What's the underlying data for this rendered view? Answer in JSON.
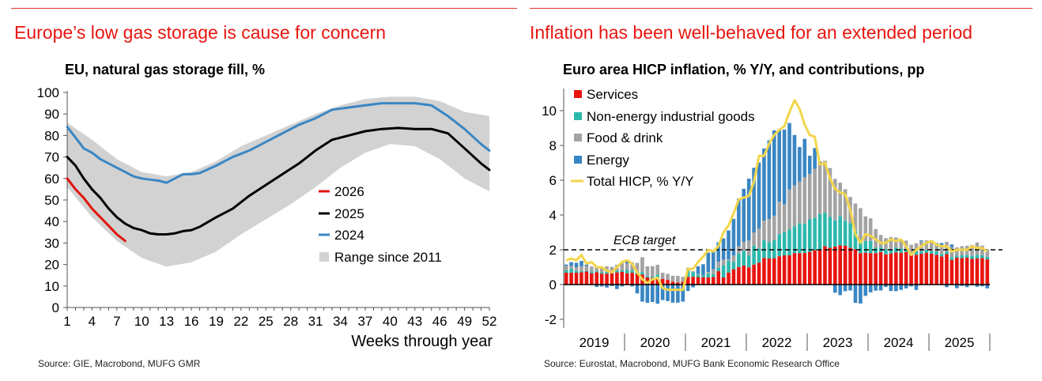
{
  "left": {
    "headline": "Europe’s low gas storage is cause for concern",
    "source": "Source: GIE, Macrobond, MUFG GMR"
  },
  "right": {
    "headline": "Inflation has been well-behaved for an extended period",
    "source": "Source: Eurostat, Macrobond, MUFG Bank Economic Research Office"
  },
  "colors": {
    "accent_red": "#e8150f",
    "line_2026": "#e0150f",
    "line_2025": "#000000",
    "line_2024": "#3a86c3",
    "range": "#d2d2d2",
    "services": "#e8150f",
    "neig": "#2db8ad",
    "food": "#a3a3a3",
    "energy": "#3a86c3",
    "total": "#f2d64b"
  },
  "chart_data": [
    {
      "type": "line",
      "title": "EU, natural gas storage fill, %",
      "xlabel": "Weeks through year",
      "ylabel": "",
      "xlim": [
        1,
        52
      ],
      "ylim": [
        0,
        100
      ],
      "x_ticks": [
        1,
        4,
        7,
        10,
        13,
        16,
        19,
        22,
        25,
        28,
        31,
        34,
        37,
        40,
        43,
        46,
        49,
        52
      ],
      "x_tick_labels": [
        "1",
        "4",
        "7",
        "10",
        "13",
        "16",
        "19",
        "22",
        "25",
        "28",
        "31",
        "34",
        "37",
        "40",
        "43",
        "46",
        "49",
        "52"
      ],
      "y_ticks": [
        0,
        10,
        20,
        30,
        40,
        50,
        60,
        70,
        80,
        90,
        100
      ],
      "y_tick_labels": [
        "0",
        "10",
        "20",
        "30",
        "40",
        "50",
        "60",
        "70",
        "80",
        "90",
        "100"
      ],
      "legend_position": "center-right",
      "band": {
        "name": "Range since 2011",
        "x": [
          1,
          4,
          7,
          10,
          13,
          16,
          19,
          22,
          25,
          28,
          31,
          34,
          37,
          40,
          43,
          46,
          49,
          52
        ],
        "upper": [
          86,
          78,
          69,
          63,
          61,
          63,
          68,
          75,
          80,
          85,
          90,
          94,
          97,
          98,
          98,
          96,
          91,
          89
        ],
        "lower": [
          56,
          42,
          31,
          23,
          19,
          21,
          26,
          34,
          41,
          48,
          56,
          65,
          72,
          76,
          75,
          69,
          60,
          54
        ]
      },
      "series": [
        {
          "name": "2026",
          "x": [
            1,
            2,
            3,
            4,
            5,
            6,
            7,
            8
          ],
          "values": [
            60,
            55,
            51,
            46,
            42,
            38,
            34,
            31
          ]
        },
        {
          "name": "2025",
          "x": [
            1,
            2,
            3,
            4,
            5,
            6,
            7,
            8,
            9,
            10,
            11,
            12,
            13,
            14,
            15,
            16,
            17,
            19,
            21,
            23,
            25,
            27,
            29,
            31,
            33,
            35,
            37,
            39,
            41,
            43,
            45,
            47,
            49,
            51,
            52
          ],
          "values": [
            70,
            66,
            60,
            55,
            51,
            46,
            42,
            39,
            37,
            36,
            34.5,
            34,
            34,
            34.5,
            35.5,
            36,
            37.5,
            42,
            46,
            52,
            57,
            62,
            67,
            73,
            78,
            80,
            82,
            83,
            83.5,
            83,
            83,
            81,
            74,
            67,
            64
          ]
        },
        {
          "name": "2024",
          "x": [
            1,
            2,
            3,
            4,
            5,
            6,
            7,
            8,
            9,
            10,
            11,
            12,
            13,
            14,
            15,
            16,
            17,
            19,
            21,
            23,
            25,
            27,
            29,
            31,
            33,
            35,
            37,
            39,
            41,
            43,
            45,
            47,
            49,
            51,
            52
          ],
          "values": [
            84,
            79,
            74,
            72,
            69,
            67,
            65,
            63,
            61,
            60,
            59.5,
            59,
            58,
            60,
            62,
            62,
            62.5,
            66,
            70,
            73,
            77,
            81,
            85,
            88,
            92,
            93,
            94,
            95,
            95,
            95,
            94,
            89,
            83,
            76,
            73
          ]
        }
      ]
    },
    {
      "type": "bar",
      "title": "Euro area HICP inflation, % Y/Y, and contributions, pp",
      "xlabel": "",
      "ylabel": "",
      "stacked": true,
      "ylim": [
        -2.5,
        11
      ],
      "y_ticks": [
        -2,
        0,
        2,
        4,
        6,
        8,
        10
      ],
      "y_tick_labels": [
        "-2",
        "0",
        "2",
        "4",
        "6",
        "8",
        "10"
      ],
      "x_tick_labels": [
        "2019",
        "2020",
        "2021",
        "2022",
        "2023",
        "2024",
        "2025"
      ],
      "months_per_year": 12,
      "start_year": 2019,
      "reference_line": {
        "value": 2,
        "label": "ECB target"
      },
      "legend_position": "top-left",
      "series": [
        {
          "name": "Services",
          "values": [
            0.68,
            0.68,
            0.68,
            0.71,
            0.75,
            0.65,
            0.71,
            0.63,
            0.63,
            0.65,
            0.7,
            0.73,
            0.65,
            0.68,
            0.61,
            0.58,
            0.41,
            0.39,
            0.34,
            0.32,
            0.27,
            0.17,
            0.12,
            0.16,
            0.44,
            0.45,
            0.43,
            0.41,
            0.42,
            0.44,
            0.77,
            0.41,
            0.69,
            0.88,
            1.01,
            1.09,
            0.99,
            1.15,
            1.26,
            1.53,
            1.5,
            1.52,
            1.63,
            1.68,
            1.68,
            1.81,
            1.81,
            1.82,
            1.88,
            1.98,
            2.03,
            2.21,
            2.11,
            2.19,
            2.25,
            2.23,
            2.12,
            2.03,
            1.81,
            1.83,
            1.81,
            1.81,
            1.87,
            1.74,
            1.79,
            1.85,
            1.83,
            1.87,
            1.73,
            1.71,
            1.78,
            1.83,
            1.78,
            1.71,
            1.62,
            1.75,
            1.42,
            1.55,
            1.52,
            1.55,
            1.48,
            1.5,
            1.53,
            1.45
          ]
        },
        {
          "name": "Non-energy industrial goods",
          "values": [
            0.14,
            0.23,
            0.11,
            0.07,
            0.06,
            0.11,
            0.06,
            0.08,
            0.09,
            0.12,
            0.11,
            0.09,
            0.19,
            0.12,
            0.13,
            0.14,
            0.07,
            0.06,
            0.24,
            0.0,
            0.0,
            0.0,
            0.0,
            0.0,
            0.37,
            0.27,
            0.12,
            0.1,
            0.21,
            0.17,
            0.2,
            0.7,
            0.68,
            0.43,
            0.77,
            0.85,
            0.69,
            1.09,
            0.81,
            1.02,
            0.93,
            1.03,
            1.27,
            1.33,
            1.48,
            1.54,
            1.71,
            1.67,
            1.87,
            1.85,
            2.03,
            1.93,
            1.78,
            1.5,
            1.68,
            1.44,
            1.41,
            1.05,
            0.79,
            0.68,
            0.7,
            0.3,
            0.27,
            0.29,
            0.24,
            0.27,
            0.24,
            0.14,
            0.13,
            0.2,
            0.14,
            0.16,
            0.14,
            0.21,
            0.14,
            0.14,
            0.16,
            0.11,
            0.16,
            0.15,
            0.17,
            0.21,
            0.16,
            0.15
          ]
        },
        {
          "name": "Food & drink",
          "values": [
            0.26,
            0.16,
            0.21,
            0.27,
            0.26,
            0.28,
            0.27,
            0.23,
            0.33,
            0.25,
            0.33,
            0.42,
            0.38,
            0.48,
            0.51,
            0.85,
            0.57,
            0.61,
            0.56,
            0.36,
            0.35,
            0.34,
            0.38,
            0.28,
            0.16,
            0.05,
            0.05,
            0.01,
            0.09,
            0.27,
            0.34,
            0.32,
            0.08,
            0.36,
            0.42,
            0.52,
            0.85,
            0.76,
            1.15,
            1.13,
            1.34,
            1.41,
            1.87,
            1.61,
            2.31,
            2.35,
            2.41,
            2.69,
            2.62,
            2.83,
            2.94,
            2.98,
            2.79,
            2.39,
            1.93,
            1.81,
            1.51,
            1.58,
            1.79,
            1.41,
            1.3,
            1.08,
            0.72,
            0.64,
            0.7,
            0.59,
            0.5,
            0.52,
            0.43,
            0.46,
            0.57,
            0.55,
            0.58,
            0.4,
            0.52,
            0.57,
            0.58,
            0.48,
            0.53,
            0.53,
            0.63,
            0.71,
            0.55,
            0.41
          ]
        },
        {
          "name": "Energy",
          "values": [
            0.07,
            0.22,
            0.25,
            0.31,
            0.08,
            -0.01,
            -0.14,
            -0.11,
            -0.17,
            -0.09,
            -0.26,
            -0.11,
            0.1,
            -0.11,
            -0.51,
            -0.98,
            -1.05,
            -1.0,
            -1.1,
            -0.89,
            -0.95,
            -1.04,
            -1.04,
            -0.98,
            -0.37,
            -0.16,
            0.45,
            0.65,
            1.12,
            1.06,
            1.12,
            1.23,
            1.66,
            2.11,
            2.75,
            3.05,
            3.56,
            3.71,
            3.8,
            4.15,
            4.52,
            4.91,
            4.11,
            4.29,
            3.82,
            2.9,
            1.98,
            2.2,
            1.04,
            1.19,
            0.08,
            -0.04,
            0.01,
            -0.47,
            -0.61,
            -0.38,
            -0.34,
            -1.05,
            -1.09,
            -0.65,
            -0.45,
            -0.35,
            -0.34,
            -0.14,
            -0.37,
            -0.38,
            -0.31,
            -0.22,
            -0.11,
            -0.31,
            0.05,
            0.0,
            0.05,
            0.07,
            0.11,
            -0.15,
            0.15,
            -0.21,
            -0.08,
            -0.15,
            -0.05,
            -0.13,
            -0.1,
            -0.22
          ]
        },
        {
          "name": "Total HICP, % Y/Y",
          "type": "line",
          "values": [
            1.4,
            1.5,
            1.4,
            1.7,
            1.2,
            1.3,
            1.0,
            1.0,
            0.8,
            0.7,
            1.0,
            1.3,
            1.4,
            1.2,
            0.7,
            0.3,
            0.1,
            0.3,
            0.4,
            -0.2,
            -0.3,
            -0.3,
            -0.3,
            -0.3,
            0.9,
            0.9,
            1.3,
            1.6,
            2.0,
            1.9,
            2.2,
            3.0,
            3.4,
            4.1,
            4.9,
            5.0,
            5.1,
            5.9,
            7.4,
            7.4,
            8.1,
            8.6,
            8.9,
            9.1,
            9.9,
            10.6,
            10.1,
            9.2,
            8.6,
            8.5,
            6.9,
            7.0,
            6.1,
            5.5,
            5.3,
            5.2,
            4.3,
            2.9,
            2.4,
            2.9,
            2.8,
            2.6,
            2.4,
            2.4,
            2.6,
            2.5,
            2.6,
            2.2,
            1.7,
            2.0,
            2.2,
            2.4,
            2.5,
            2.3,
            2.2,
            2.2,
            1.9,
            2.0,
            2.0,
            2.0,
            2.2,
            2.1,
            2.1,
            1.9
          ]
        }
      ]
    }
  ]
}
